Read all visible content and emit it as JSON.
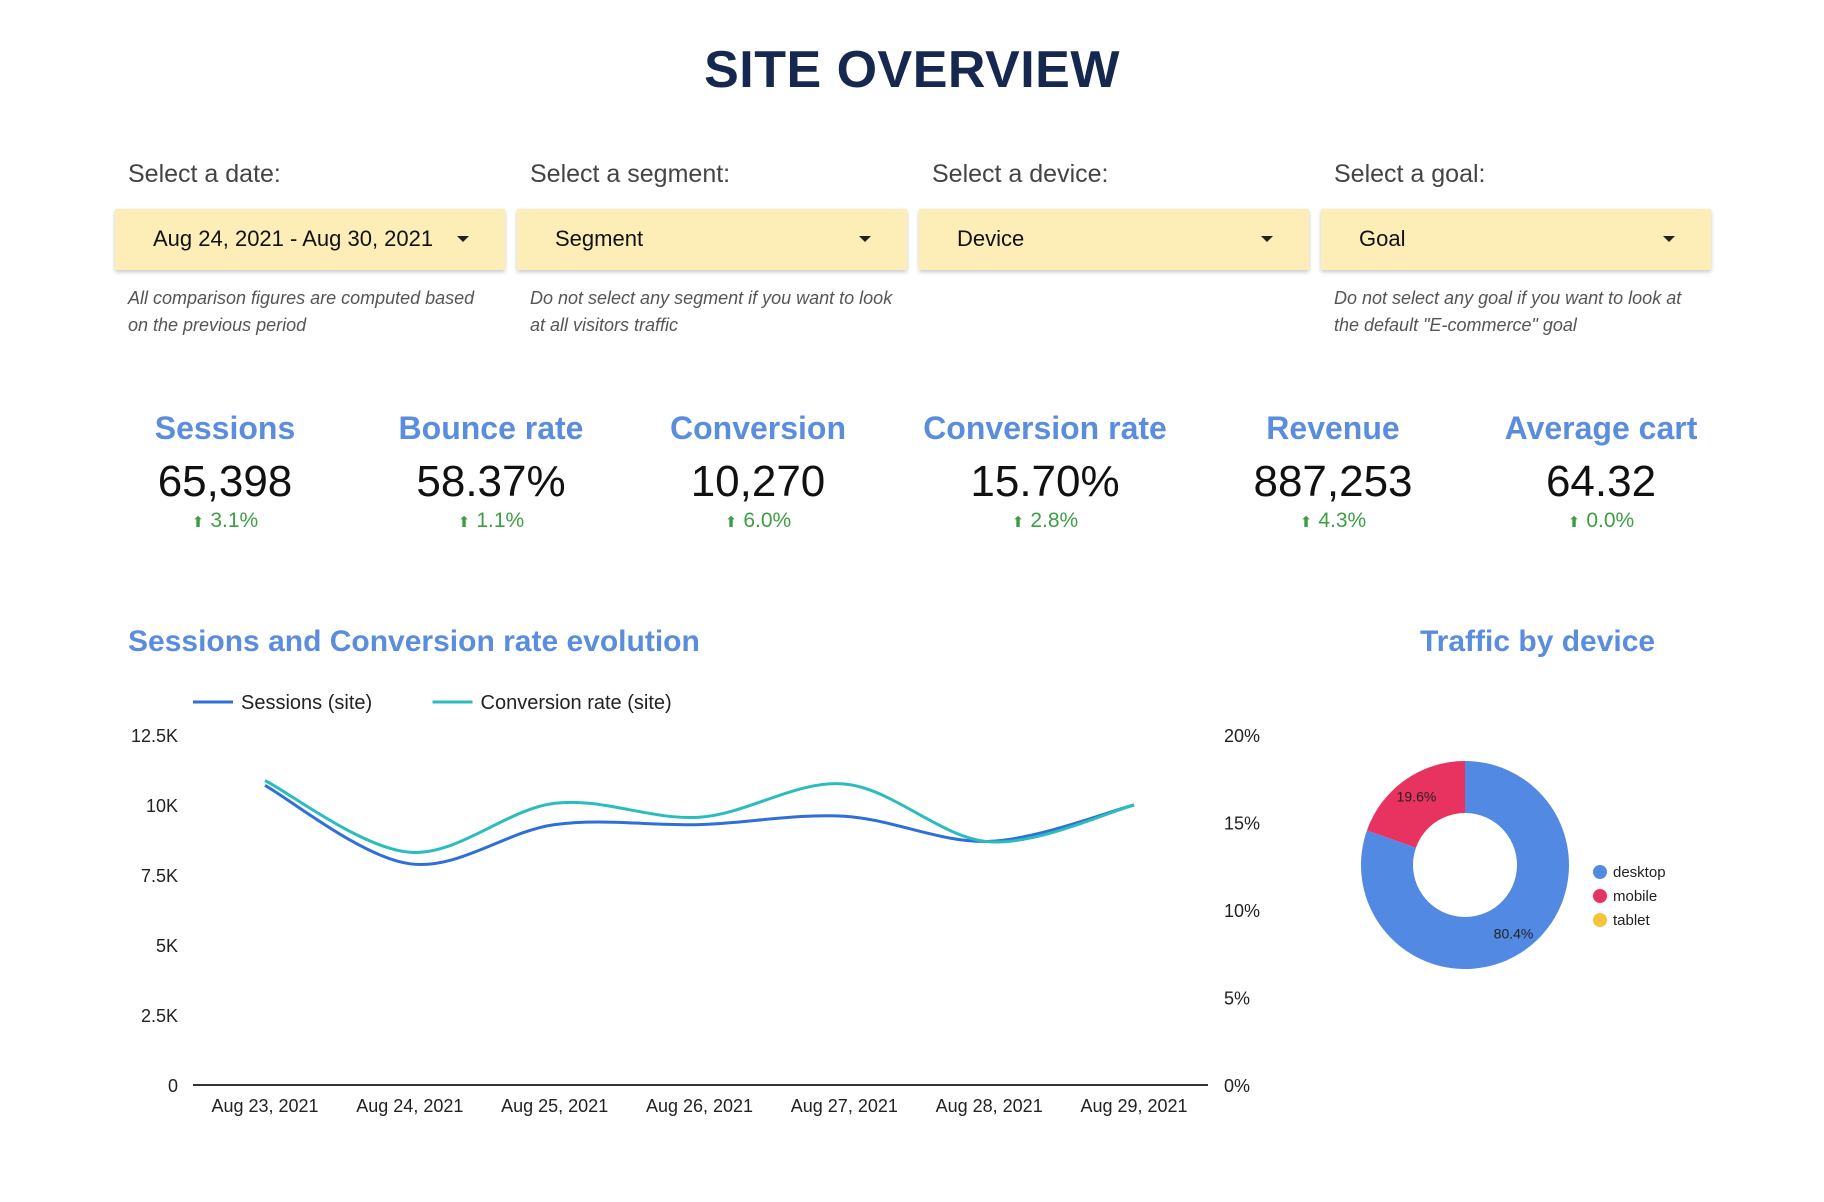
{
  "title": "SITE OVERVIEW",
  "filters": [
    {
      "label": "Select a date:",
      "value": "Aug 24, 2021 - Aug 30, 2021",
      "note": "All comparison figures are computed based on the previous period"
    },
    {
      "label": "Select a segment:",
      "value": "Segment",
      "note": "Do not select any segment if you want to look at all visitors traffic"
    },
    {
      "label": "Select a device:",
      "value": "Device",
      "note": ""
    },
    {
      "label": "Select a goal:",
      "value": "Goal",
      "note": "Do not select any goal if you want to look at the default \"E-commerce\" goal"
    }
  ],
  "kpis": [
    {
      "label": "Sessions",
      "value": "65,398",
      "delta": "3.1%"
    },
    {
      "label": "Bounce rate",
      "value": "58.37%",
      "delta": "1.1%"
    },
    {
      "label": "Conversion",
      "value": "10,270",
      "delta": "6.0%"
    },
    {
      "label": "Conversion rate",
      "value": "15.70%",
      "delta": "2.8%"
    },
    {
      "label": "Revenue",
      "value": "887,253",
      "delta": "4.3%"
    },
    {
      "label": "Average cart",
      "value": "64.32",
      "delta": "0.0%"
    }
  ],
  "colors": {
    "title": "#16284f",
    "accent": "#5b8dde",
    "dropdown_bg": "#fdedb6",
    "positive": "#3f9e45",
    "sessions_line": "#2e6fd8",
    "conversion_line": "#2bbcc0",
    "desktop": "#5189e3",
    "mobile": "#e8325f",
    "tablet": "#f8c23a"
  },
  "line_chart_title": "Sessions and Conversion rate evolution",
  "pie_chart_title": "Traffic by device",
  "chart_data": [
    {
      "type": "line",
      "title": "Sessions and Conversion rate evolution",
      "categories": [
        "Aug 23, 2021",
        "Aug 24, 2021",
        "Aug 25, 2021",
        "Aug 26, 2021",
        "Aug 27, 2021",
        "Aug 28, 2021",
        "Aug 29, 2021"
      ],
      "left_axis": {
        "ticks": [
          "0",
          "2.5K",
          "5K",
          "7.5K",
          "10K",
          "12.5K"
        ],
        "ylim": [
          0,
          12500
        ]
      },
      "right_axis": {
        "ticks": [
          "0%",
          "5%",
          "10%",
          "15%",
          "20%"
        ],
        "ylim": [
          0,
          20
        ]
      },
      "series": [
        {
          "name": "Sessions (site)",
          "axis": "left",
          "values": [
            10700,
            7900,
            9300,
            9300,
            9600,
            8700,
            10000
          ]
        },
        {
          "name": "Conversion rate (site)",
          "axis": "right",
          "values": [
            17.4,
            13.3,
            16.1,
            15.3,
            17.2,
            13.9,
            16.0
          ]
        }
      ]
    },
    {
      "type": "pie",
      "title": "Traffic by device",
      "labels": [
        "desktop",
        "mobile",
        "tablet"
      ],
      "values": [
        80.4,
        19.6,
        0
      ],
      "value_labels": [
        "80.4%",
        "19.6%",
        ""
      ]
    }
  ]
}
